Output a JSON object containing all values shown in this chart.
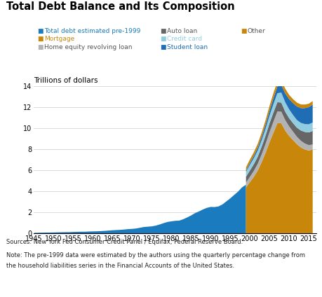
{
  "title": "Total Debt Balance and Its Composition",
  "ylabel": "Trillions of dollars",
  "ylim": [
    0,
    14
  ],
  "colors": {
    "pre1999": "#1b7bbf",
    "mortgage": "#c8870b",
    "home_equity": "#b3b3b3",
    "auto": "#666666",
    "credit_card": "#92cce0",
    "student": "#1f6db5",
    "other": "#c8870b"
  },
  "legend_items": [
    {
      "label": "Total debt estimated pre-1999",
      "color": "#1b7bbf",
      "text_color": "#1b7bbf"
    },
    {
      "label": "Auto loan",
      "color": "#666666",
      "text_color": "#555555"
    },
    {
      "label": "Other",
      "color": "#c8870b",
      "text_color": "#555555"
    },
    {
      "label": "Mortgage",
      "color": "#c8870b",
      "text_color": "#c8870b"
    },
    {
      "label": "Credit card",
      "color": "#92cce0",
      "text_color": "#92cce0"
    },
    {
      "label": "Home equity revolving loan",
      "color": "#b3b3b3",
      "text_color": "#555555"
    },
    {
      "label": "Student loan",
      "color": "#1f6db5",
      "text_color": "#1f6db5"
    }
  ],
  "source_text": "Sources: New York Fed Consumer Credit Panel / Equifax; Federal Reserve Board.",
  "note_line1": "Note: The pre-1999 data were estimated by the authors using the quarterly percentage change from",
  "note_line2": "the household liabilities series in the Financial Accounts of the United States.",
  "pre1999_years": [
    1945,
    1946,
    1947,
    1948,
    1949,
    1950,
    1951,
    1952,
    1953,
    1954,
    1955,
    1956,
    1957,
    1958,
    1959,
    1960,
    1961,
    1962,
    1963,
    1964,
    1965,
    1966,
    1967,
    1968,
    1969,
    1970,
    1971,
    1972,
    1973,
    1974,
    1975,
    1976,
    1977,
    1978,
    1979,
    1980,
    1981,
    1982,
    1983,
    1984,
    1985,
    1986,
    1987,
    1988,
    1989,
    1990,
    1991,
    1992,
    1993,
    1994,
    1995,
    1996,
    1997,
    1998,
    1999
  ],
  "pre1999_values": [
    0.06,
    0.07,
    0.08,
    0.09,
    0.09,
    0.1,
    0.11,
    0.12,
    0.13,
    0.13,
    0.15,
    0.16,
    0.17,
    0.17,
    0.19,
    0.2,
    0.21,
    0.23,
    0.25,
    0.28,
    0.31,
    0.33,
    0.35,
    0.38,
    0.42,
    0.44,
    0.48,
    0.55,
    0.62,
    0.65,
    0.68,
    0.75,
    0.86,
    0.99,
    1.1,
    1.16,
    1.21,
    1.23,
    1.36,
    1.53,
    1.72,
    1.94,
    2.1,
    2.29,
    2.44,
    2.53,
    2.52,
    2.58,
    2.77,
    3.06,
    3.35,
    3.68,
    4.0,
    4.4,
    4.65
  ],
  "post1999_years": [
    1999,
    2000,
    2001,
    2002,
    2003,
    2004,
    2005,
    2006,
    2007,
    2008,
    2009,
    2010,
    2011,
    2012,
    2013,
    2014,
    2015,
    2016
  ],
  "mortgage": [
    4.4,
    4.9,
    5.4,
    6.0,
    6.8,
    7.7,
    8.7,
    9.6,
    10.5,
    10.5,
    9.8,
    9.3,
    8.9,
    8.5,
    8.2,
    8.0,
    7.9,
    8.0
  ],
  "home_equity": [
    0.45,
    0.5,
    0.57,
    0.65,
    0.75,
    0.85,
    0.95,
    1.05,
    1.12,
    1.1,
    1.0,
    0.9,
    0.8,
    0.7,
    0.63,
    0.57,
    0.52,
    0.47
  ],
  "auto": [
    0.55,
    0.6,
    0.63,
    0.67,
    0.72,
    0.78,
    0.84,
    0.88,
    0.88,
    0.87,
    0.8,
    0.78,
    0.8,
    0.87,
    0.98,
    1.1,
    1.2,
    1.3
  ],
  "credit_card": [
    0.48,
    0.54,
    0.57,
    0.59,
    0.62,
    0.66,
    0.74,
    0.81,
    0.86,
    0.95,
    0.9,
    0.84,
    0.78,
    0.73,
    0.72,
    0.75,
    0.78,
    0.8
  ],
  "student": [
    0.12,
    0.18,
    0.22,
    0.27,
    0.32,
    0.38,
    0.46,
    0.55,
    0.64,
    0.73,
    0.85,
    0.98,
    1.13,
    1.3,
    1.41,
    1.52,
    1.63,
    1.71
  ],
  "other": [
    0.3,
    0.33,
    0.35,
    0.37,
    0.4,
    0.43,
    0.46,
    0.48,
    0.48,
    0.46,
    0.44,
    0.4,
    0.38,
    0.36,
    0.35,
    0.34,
    0.33,
    0.32
  ]
}
